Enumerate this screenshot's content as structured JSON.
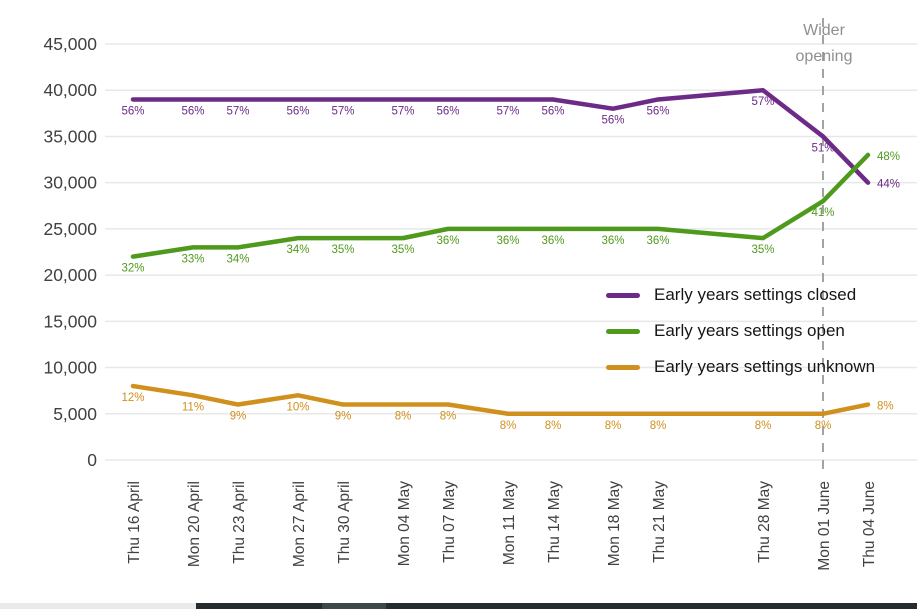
{
  "chart_data": {
    "type": "line",
    "title": "",
    "xlabel": "",
    "ylabel": "",
    "ylim": [
      0,
      45000
    ],
    "grid": true,
    "y_tick_labels": [
      "0",
      "5,000",
      "10,000",
      "15,000",
      "20,000",
      "25,000",
      "30,000",
      "35,000",
      "40,000",
      "45,000"
    ],
    "y_tick_values": [
      0,
      5000,
      10000,
      15000,
      20000,
      25000,
      30000,
      35000,
      40000,
      45000
    ],
    "categories": [
      "Thu 16 April",
      "Mon 20 April",
      "Thu 23 April",
      "Mon 27 April",
      "Thu 30 April",
      "Mon 04 May",
      "Thu 07 May",
      "Mon 11 May",
      "Thu 14 May",
      "Mon 18 May",
      "Thu 21 May",
      "Thu 28 May",
      "Mon 01 June",
      "Thu 04 June"
    ],
    "day_offsets": [
      0,
      4,
      7,
      11,
      14,
      18,
      21,
      25,
      28,
      32,
      35,
      42,
      46,
      49
    ],
    "series": [
      {
        "name": "Early years settings closed",
        "color": "#6c2b87",
        "values": [
          39000,
          39000,
          39000,
          39000,
          39000,
          39000,
          39000,
          39000,
          39000,
          38000,
          39000,
          40000,
          35000,
          30000
        ],
        "point_labels": [
          "56%",
          "56%",
          "57%",
          "56%",
          "57%",
          "57%",
          "56%",
          "57%",
          "56%",
          "56%",
          "56%",
          "57%",
          "51%",
          "44%"
        ]
      },
      {
        "name": "Early years settings open",
        "color": "#4f9a1d",
        "values": [
          22000,
          23000,
          23000,
          24000,
          24000,
          24000,
          25000,
          25000,
          25000,
          25000,
          25000,
          24000,
          28000,
          33000
        ],
        "point_labels": [
          "32%",
          "33%",
          "34%",
          "34%",
          "35%",
          "35%",
          "36%",
          "36%",
          "36%",
          "36%",
          "36%",
          "35%",
          "41%",
          "48%"
        ]
      },
      {
        "name": "Early years settings unknown",
        "color": "#d0901e",
        "values": [
          8000,
          7000,
          6000,
          7000,
          6000,
          6000,
          6000,
          5000,
          5000,
          5000,
          5000,
          5000,
          5000,
          6000
        ],
        "point_labels": [
          "12%",
          "11%",
          "9%",
          "10%",
          "9%",
          "8%",
          "8%",
          "8%",
          "8%",
          "8%",
          "8%",
          "8%",
          "8%",
          "8%"
        ]
      }
    ],
    "annotation": {
      "label": "Wider opening",
      "category": "Mon 01 June",
      "line_color": "#a3a3a3",
      "text_color": "#8f8f8f"
    },
    "legend_position": "middle-right",
    "axis_text_color": "#414042",
    "gridline_color": "#e8e8e8"
  }
}
